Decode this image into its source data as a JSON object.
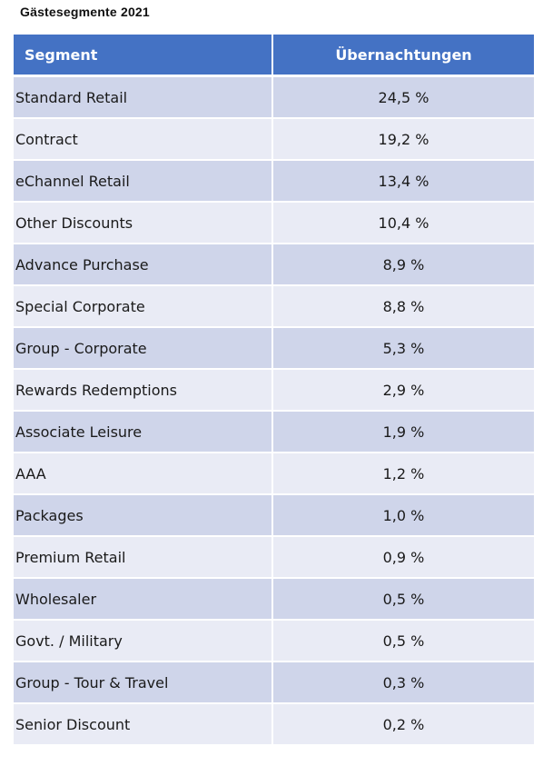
{
  "title": "Gästesegmente 2021",
  "table": {
    "headers": {
      "segment": "Segment",
      "value": "Übernachtungen"
    },
    "rows": [
      {
        "segment": "Standard Retail",
        "value": "24,5 %"
      },
      {
        "segment": "Contract",
        "value": "19,2 %"
      },
      {
        "segment": "eChannel Retail",
        "value": "13,4 %"
      },
      {
        "segment": "Other Discounts",
        "value": "10,4 %"
      },
      {
        "segment": "Advance Purchase",
        "value": "8,9 %"
      },
      {
        "segment": "Special Corporate",
        "value": "8,8 %"
      },
      {
        "segment": "Group - Corporate",
        "value": "5,3 %"
      },
      {
        "segment": "Rewards Redemptions",
        "value": "2,9 %"
      },
      {
        "segment": "Associate Leisure",
        "value": "1,9 %"
      },
      {
        "segment": "AAA",
        "value": "1,2 %"
      },
      {
        "segment": "Packages",
        "value": "1,0 %"
      },
      {
        "segment": "Premium Retail",
        "value": "0,9 %"
      },
      {
        "segment": "Wholesaler",
        "value": "0,5 %"
      },
      {
        "segment": "Govt. / Military",
        "value": "0,5 %"
      },
      {
        "segment": "Group - Tour & Travel",
        "value": "0,3 %"
      },
      {
        "segment": "Senior Discount",
        "value": "0,2 %"
      }
    ]
  },
  "colors": {
    "header_bg": "#4472c4",
    "row_band_dark": "#cfd5ea",
    "row_band_light": "#e9ebf5"
  }
}
